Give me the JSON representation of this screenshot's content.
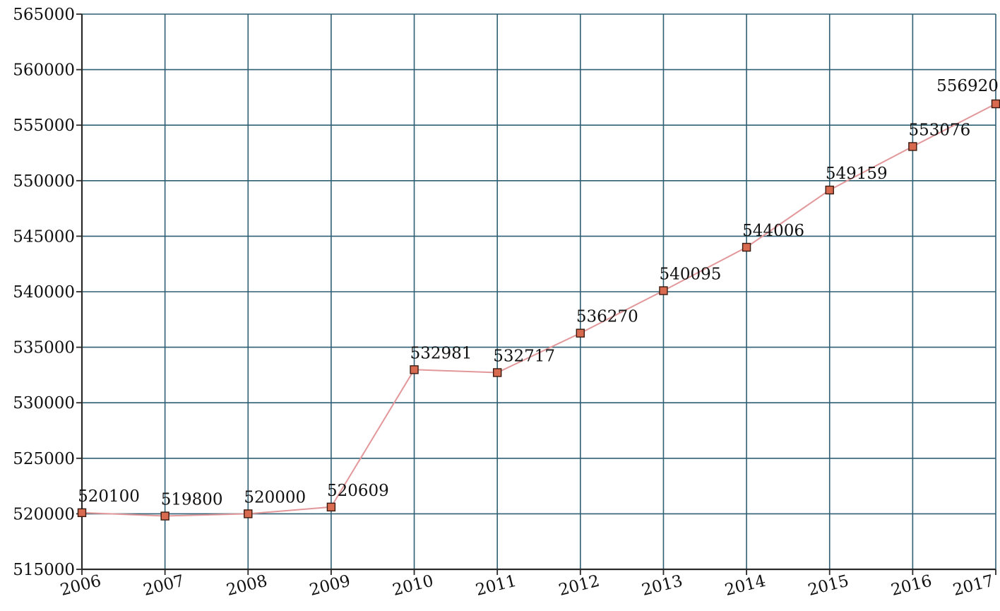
{
  "chart_data": {
    "type": "line",
    "title": "",
    "xlabel": "",
    "ylabel": "",
    "x": [
      "2006",
      "2007",
      "2008",
      "2009",
      "2010",
      "2011",
      "2012",
      "2013",
      "2014",
      "2015",
      "2016",
      "2017"
    ],
    "series": [
      {
        "values": [
          520100,
          519800,
          520000,
          520609,
          532981,
          532717,
          536270,
          540095,
          544006,
          549159,
          553076,
          556920
        ],
        "labels": [
          "520100",
          "519800",
          "520000",
          "520609",
          "532981",
          "532717",
          "536270",
          "540095",
          "544006",
          "549159",
          "553076",
          "556920"
        ]
      }
    ],
    "ylim": [
      515000,
      565000
    ],
    "y_ticks": [
      "515000",
      "520000",
      "525000",
      "530000",
      "535000",
      "540000",
      "545000",
      "550000",
      "555000",
      "560000",
      "565000"
    ],
    "grid": true,
    "legend": "none",
    "colors": {
      "line": "#e2989a",
      "marker": "#d86a4f",
      "grid": "#2f5f73"
    }
  }
}
